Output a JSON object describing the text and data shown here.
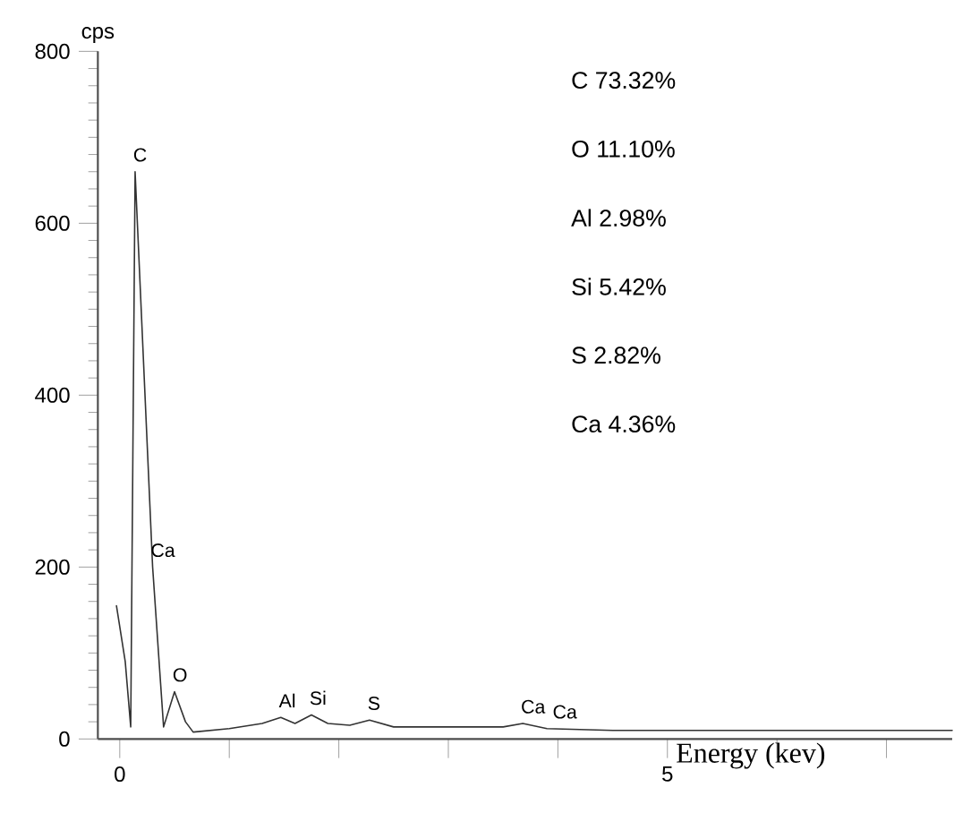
{
  "chart_data": {
    "type": "line",
    "ylabel": "cps",
    "xlabel": "Energy (kev)",
    "x": [
      -0.03,
      0.05,
      0.1,
      0.14,
      0.3,
      0.4,
      0.5,
      0.6,
      0.67,
      1.0,
      1.3,
      1.47,
      1.6,
      1.75,
      1.9,
      2.1,
      2.28,
      2.5,
      3.0,
      3.5,
      3.68,
      3.9,
      4.5,
      5.5,
      6.5,
      7.6
    ],
    "series": [
      {
        "color": "#333333",
        "values": [
          155,
          90,
          14,
          660,
          200,
          14,
          55,
          20,
          8,
          12,
          18,
          25,
          18,
          28,
          18,
          16,
          22,
          14,
          14,
          14,
          18,
          12,
          10,
          10,
          10,
          10
        ]
      }
    ],
    "xlim": [
      -0.2,
      7.6
    ],
    "ylim": [
      0,
      800
    ],
    "xticks": [
      0,
      {
        "value": 1,
        "label": null
      },
      {
        "value": 2,
        "label": null
      },
      {
        "value": 3,
        "label": null
      },
      {
        "value": 4,
        "label": null
      },
      5,
      {
        "value": 6,
        "label": null
      },
      {
        "value": 7,
        "label": null
      }
    ],
    "yticks": [
      0,
      200,
      400,
      600,
      800
    ],
    "annotations": [
      {
        "text": "C",
        "x": 0.14,
        "y": 660
      },
      {
        "text": "Ca",
        "x": 0.3,
        "y": 200
      },
      {
        "text": "O",
        "x": 0.5,
        "y": 55
      },
      {
        "text": "Al",
        "x": 1.47,
        "y": 25
      },
      {
        "text": "Si",
        "x": 1.75,
        "y": 28
      },
      {
        "text": "S",
        "x": 2.28,
        "y": 22
      },
      {
        "text": "Ca",
        "x": 3.68,
        "y": 18
      },
      {
        "text": "Ca",
        "x": 3.97,
        "y": 12
      },
      "C  73.32%",
      "O  11.10%",
      "Al  2.98%",
      "Si  5.42%",
      "S  2.82%",
      "Ca  4.36%"
    ]
  }
}
